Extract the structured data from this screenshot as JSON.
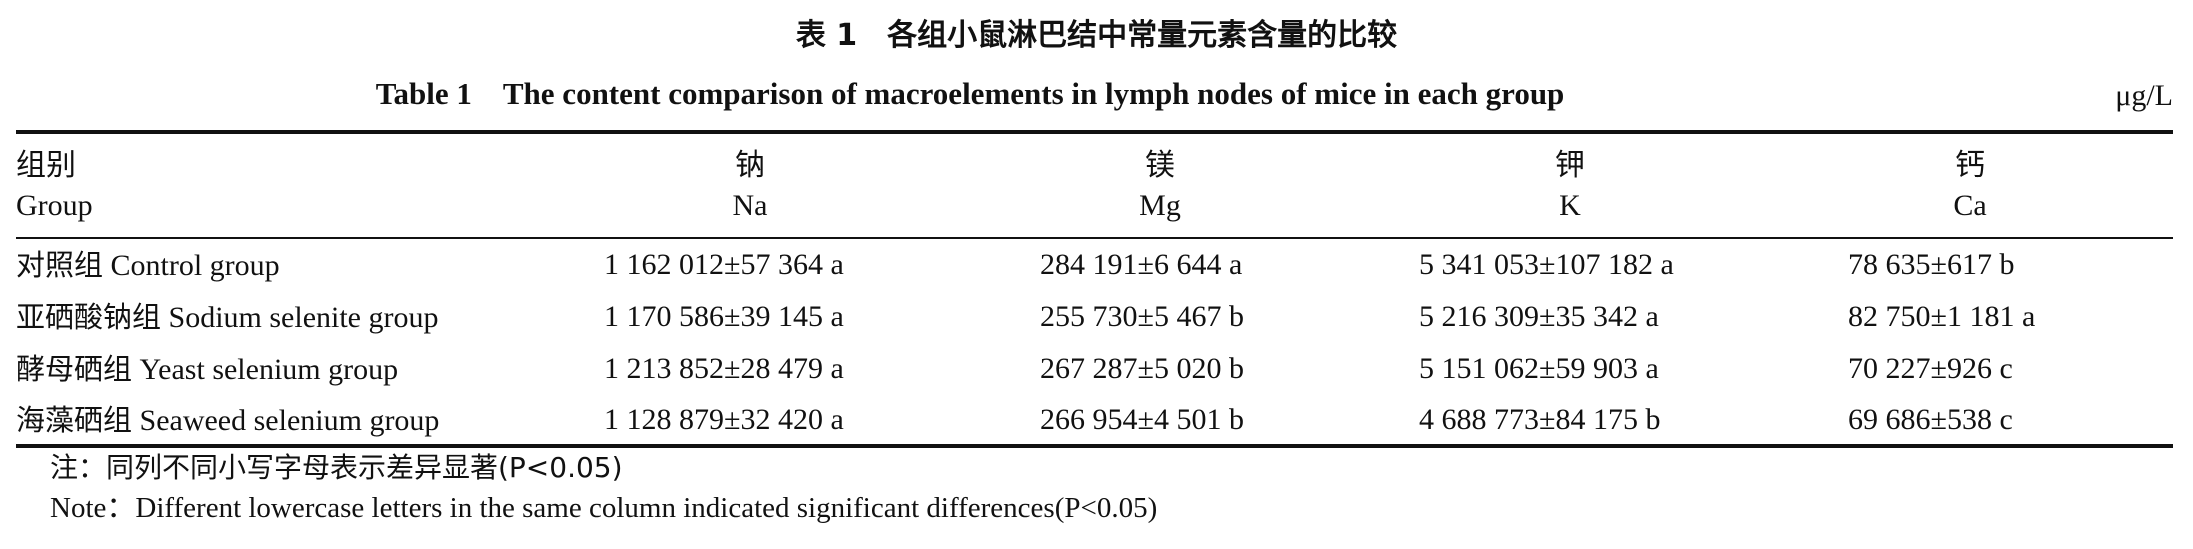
{
  "caption": {
    "title_cn": "表 1　各组小鼠淋巴结中常量元素含量的比较",
    "title_en": "Table 1　The content comparison of macroelements in lymph nodes of mice in each group",
    "unit": "μg/L"
  },
  "header": {
    "group_cn": "组别",
    "group_en": "Group",
    "columns": [
      {
        "cn": "钠",
        "en": "Na"
      },
      {
        "cn": "镁",
        "en": "Mg"
      },
      {
        "cn": "钾",
        "en": "K"
      },
      {
        "cn": "钙",
        "en": "Ca"
      }
    ]
  },
  "rows": [
    {
      "group_cn": "对照组",
      "group_en": "Control group",
      "values": [
        "1 162 012±57 364 a",
        "284 191±6 644 a",
        "5 341 053±107 182 a",
        "78 635±617 b"
      ]
    },
    {
      "group_cn": "亚硒酸钠组",
      "group_en": "Sodium selenite group",
      "values": [
        "1 170 586±39 145 a",
        "255 730±5 467 b",
        "5 216 309±35 342 a",
        "82 750±1 181 a"
      ]
    },
    {
      "group_cn": "酵母硒组",
      "group_en": "Yeast selenium group",
      "values": [
        "1 213 852±28 479 a",
        "267 287±5 020 b",
        "5 151 062±59 903 a",
        "70 227±926 c"
      ]
    },
    {
      "group_cn": "海藻硒组",
      "group_en": "Seaweed selenium group",
      "values": [
        "1 128 879±32 420 a",
        "266 954±4 501 b",
        "4 688 773±84 175 b",
        "69 686±538 c"
      ]
    }
  ],
  "notes": {
    "cn": "注：同列不同小写字母表示差异显著(P<0.05)",
    "en": "Note：Different lowercase letters in the same column indicated significant differences(P<0.05)"
  }
}
